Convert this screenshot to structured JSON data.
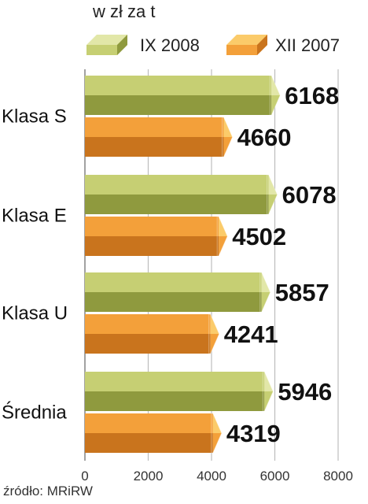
{
  "unit_label": "w zł za t",
  "source": "źródło: MRiRW",
  "colors": {
    "green_face": "#c6cf73",
    "green_side": "#e2e7a8",
    "green_bottom": "#8f9a3e",
    "orange_face": "#f3a03a",
    "orange_side": "#fbcb6a",
    "orange_bottom": "#c9741d",
    "grid": "#bdbdbd"
  },
  "chart_data": {
    "type": "bar",
    "orientation": "horizontal",
    "categories": [
      "Klasa S",
      "Klasa E",
      "Klasa U",
      "Średnia"
    ],
    "series": [
      {
        "name": "IX 2008",
        "color": "green",
        "values": [
          6168,
          6078,
          5857,
          5946
        ]
      },
      {
        "name": "XII 2007",
        "color": "orange",
        "values": [
          4660,
          4502,
          4241,
          4319
        ]
      }
    ],
    "data_labels": [
      [
        "6168",
        "4660"
      ],
      [
        "6078",
        "4502"
      ],
      [
        "5857",
        "4241"
      ],
      [
        "5946",
        "4319"
      ]
    ],
    "xlim": [
      0,
      8000
    ],
    "ticks": [
      0,
      2000,
      4000,
      6000,
      8000
    ],
    "tick_labels": [
      "0",
      "2000",
      "4000",
      "6000",
      "8000"
    ],
    "grid": true,
    "legend_position": "top"
  }
}
